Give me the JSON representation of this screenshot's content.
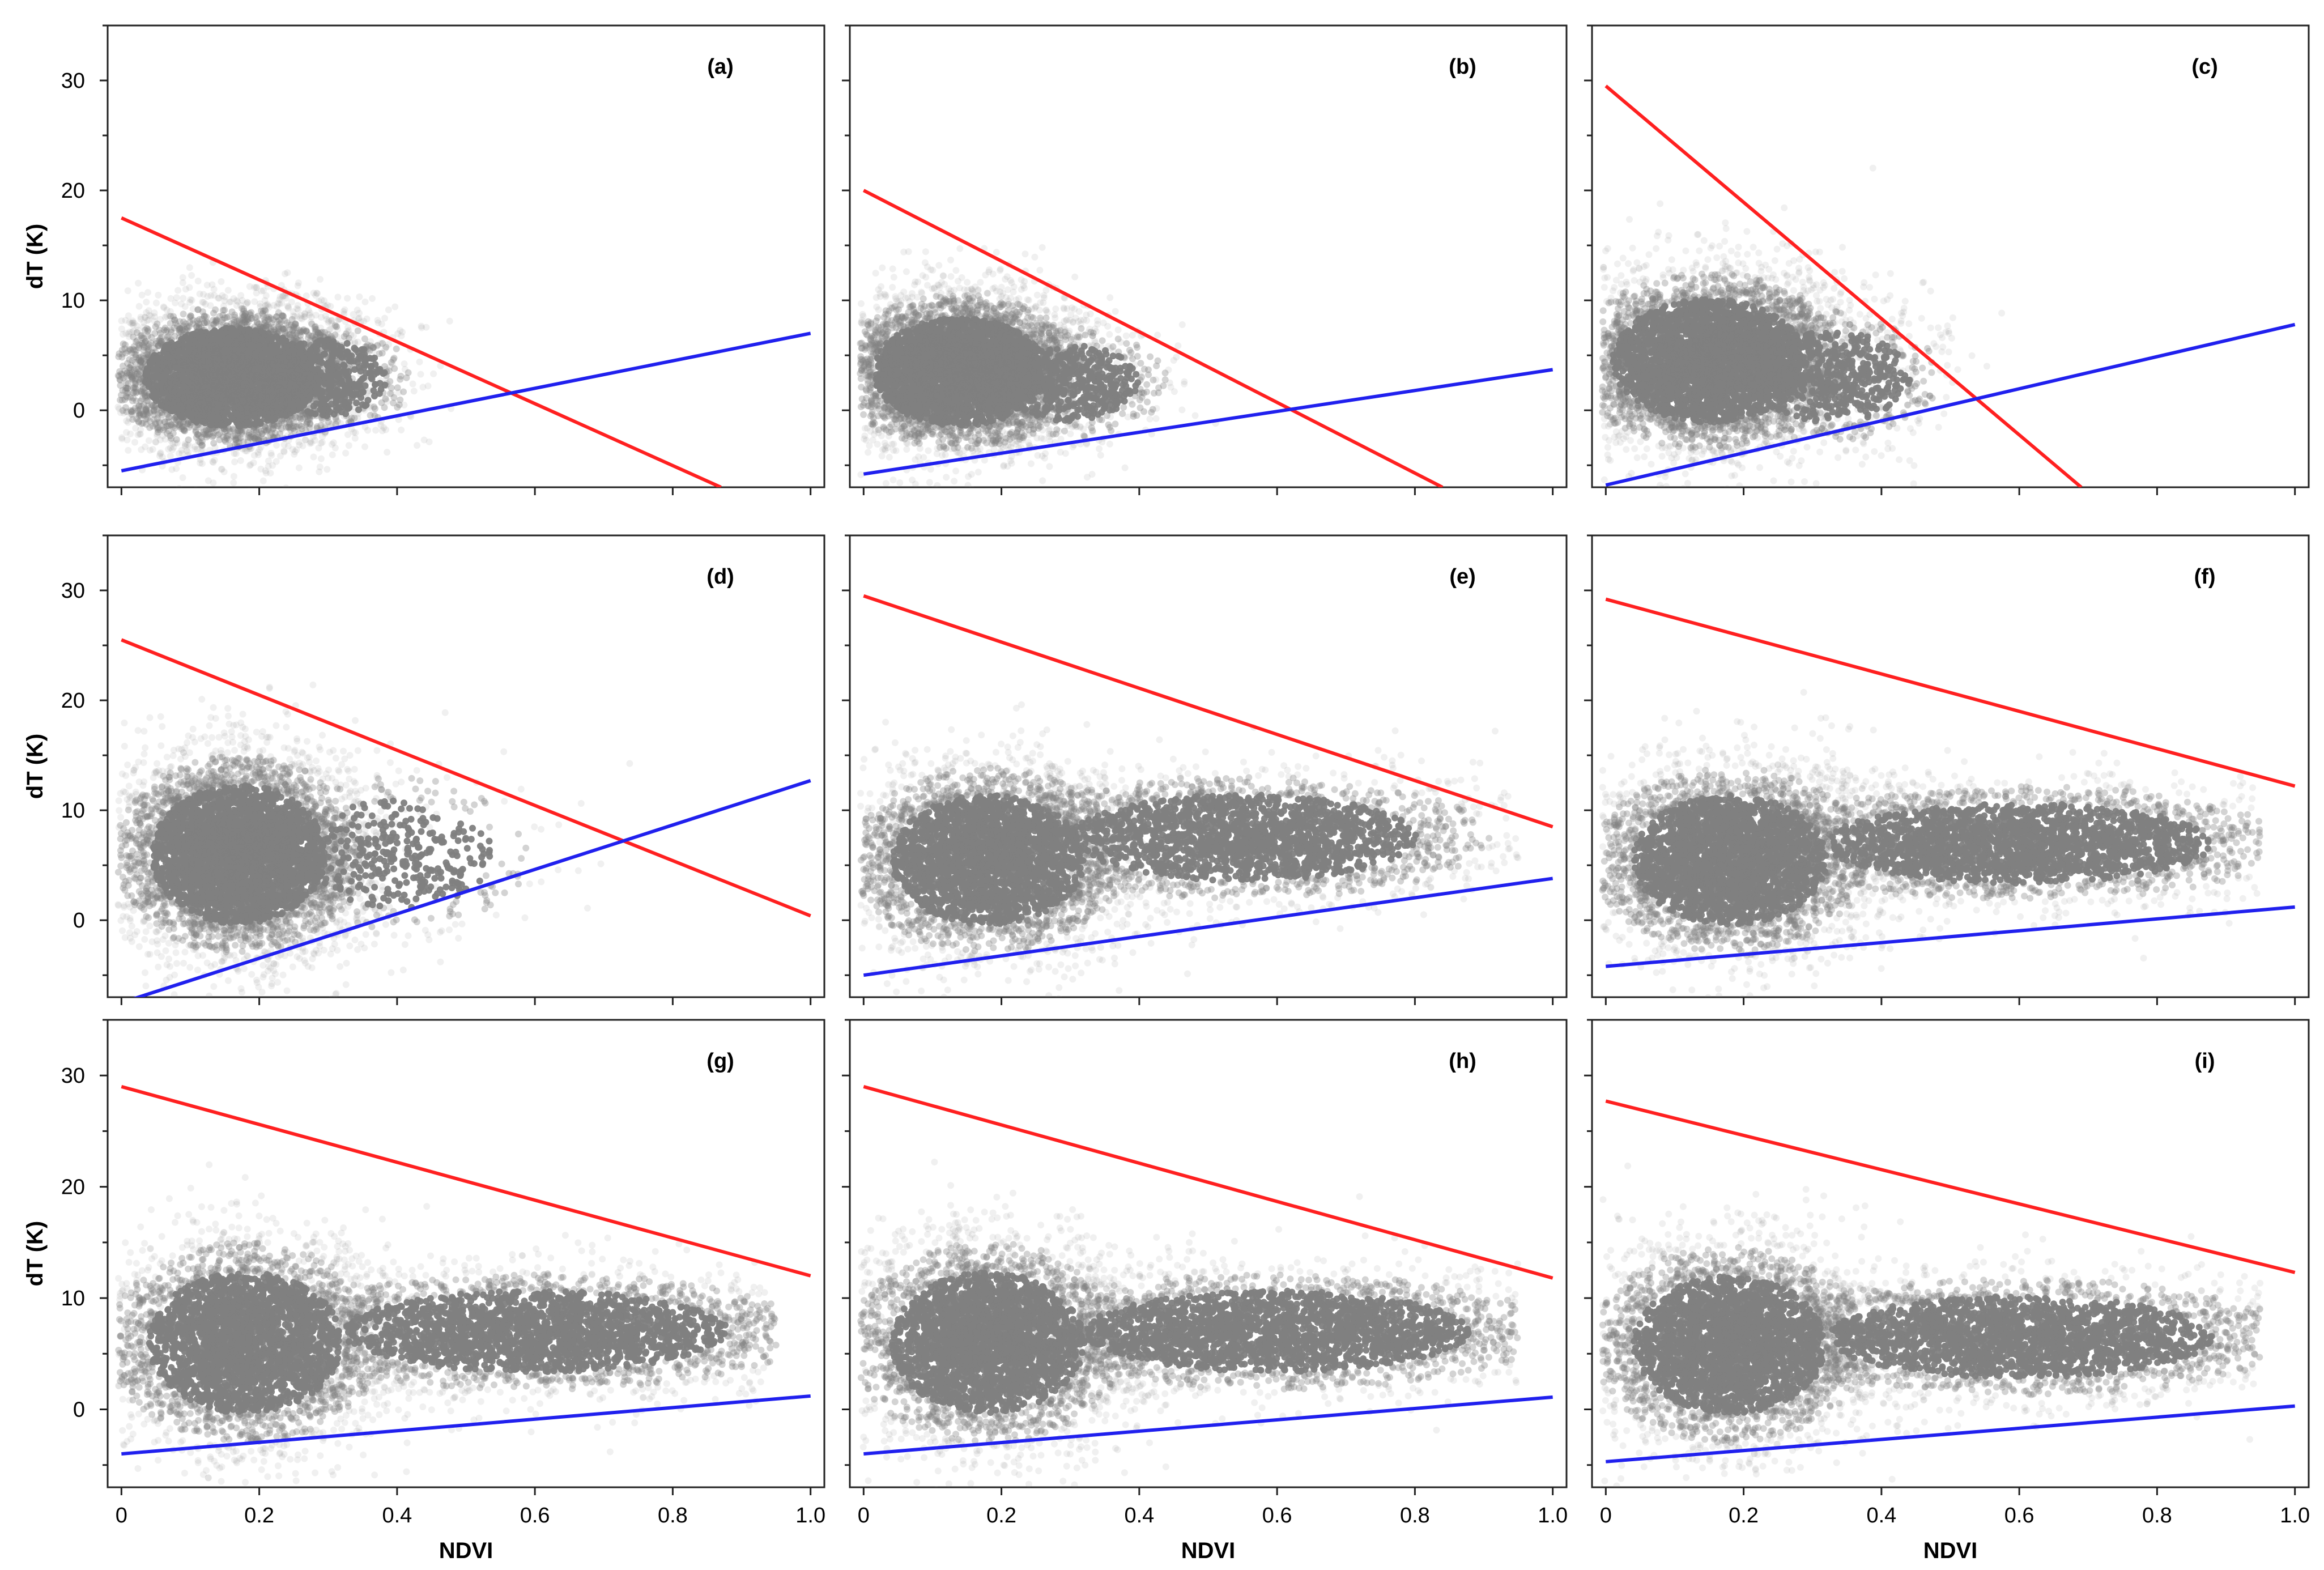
{
  "chart_data": {
    "type": "scatter",
    "layout": "3x3 grid of scatter plots",
    "xlabel": "NDVI",
    "ylabel": "dT (K)",
    "xlim": [
      -0.02,
      1.02
    ],
    "ylim": [
      -7,
      35
    ],
    "x_ticks": [
      0,
      0.2,
      0.4,
      0.6,
      0.8,
      1.0
    ],
    "x_tick_labels": [
      "0",
      "0.2",
      "0.4",
      "0.6",
      "0.8",
      "1.0"
    ],
    "y_ticks": [
      0,
      10,
      20,
      30
    ],
    "y_tick_labels": [
      "0",
      "10",
      "20",
      "30"
    ],
    "colors": {
      "scatter": "#808080",
      "dry_edge": "#ff2020",
      "wet_edge": "#2020ee"
    },
    "panels": [
      {
        "label": "(a)",
        "dry_edge": {
          "x": [
            0,
            0.87
          ],
          "y": [
            17.5,
            -7
          ]
        },
        "wet_edge": {
          "x": [
            0,
            1.0
          ],
          "y": [
            -5.5,
            7.0
          ]
        },
        "clouds": [
          {
            "cx": 0.16,
            "cy": 3.0,
            "sx": 0.09,
            "sy": 3.2,
            "n": 4500
          },
          {
            "cx": 0.3,
            "cy": 3.0,
            "sx": 0.06,
            "sy": 2.5,
            "n": 600
          }
        ]
      },
      {
        "label": "(b)",
        "dry_edge": {
          "x": [
            0,
            0.84
          ],
          "y": [
            20.0,
            -7
          ]
        },
        "wet_edge": {
          "x": [
            0,
            1.0
          ],
          "y": [
            -5.8,
            3.7
          ]
        },
        "clouds": [
          {
            "cx": 0.14,
            "cy": 3.5,
            "sx": 0.09,
            "sy": 3.5,
            "n": 4500
          },
          {
            "cx": 0.3,
            "cy": 2.5,
            "sx": 0.07,
            "sy": 2.5,
            "n": 700
          }
        ]
      },
      {
        "label": "(c)",
        "dry_edge": {
          "x": [
            0,
            0.69
          ],
          "y": [
            29.5,
            -7
          ]
        },
        "wet_edge": {
          "x": [
            0,
            1.0
          ],
          "y": [
            -6.8,
            7.8
          ]
        },
        "clouds": [
          {
            "cx": 0.15,
            "cy": 4.5,
            "sx": 0.1,
            "sy": 4.0,
            "n": 4500
          },
          {
            "cx": 0.33,
            "cy": 3.0,
            "sx": 0.08,
            "sy": 3.0,
            "n": 800
          }
        ]
      },
      {
        "label": "(d)",
        "dry_edge": {
          "x": [
            0,
            1.0
          ],
          "y": [
            25.5,
            0.4
          ]
        },
        "wet_edge": {
          "x": [
            0,
            1.0
          ],
          "y": [
            -7.5,
            12.7
          ]
        },
        "clouds": [
          {
            "cx": 0.17,
            "cy": 6.0,
            "sx": 0.09,
            "sy": 4.5,
            "n": 4500
          },
          {
            "cx": 0.4,
            "cy": 6.0,
            "sx": 0.1,
            "sy": 3.5,
            "n": 500
          }
        ]
      },
      {
        "label": "(e)",
        "dry_edge": {
          "x": [
            0,
            1.0
          ],
          "y": [
            29.5,
            8.5
          ]
        },
        "wet_edge": {
          "x": [
            0,
            1.0
          ],
          "y": [
            -5.0,
            3.8
          ]
        },
        "clouds": [
          {
            "cx": 0.18,
            "cy": 5.5,
            "sx": 0.1,
            "sy": 4.2,
            "n": 3500
          },
          {
            "cx": 0.55,
            "cy": 7.5,
            "sx": 0.18,
            "sy": 2.8,
            "n": 2500
          }
        ]
      },
      {
        "label": "(f)",
        "dry_edge": {
          "x": [
            0,
            1.0
          ],
          "y": [
            29.2,
            12.2
          ]
        },
        "wet_edge": {
          "x": [
            0,
            1.0
          ],
          "y": [
            -4.2,
            1.2
          ]
        },
        "clouds": [
          {
            "cx": 0.18,
            "cy": 5.5,
            "sx": 0.1,
            "sy": 4.2,
            "n": 3500
          },
          {
            "cx": 0.6,
            "cy": 7.0,
            "sx": 0.2,
            "sy": 2.6,
            "n": 3000
          }
        ]
      },
      {
        "label": "(g)",
        "dry_edge": {
          "x": [
            0,
            1.0
          ],
          "y": [
            29.0,
            12.0
          ]
        },
        "wet_edge": {
          "x": [
            0,
            1.0
          ],
          "y": [
            -4.0,
            1.2
          ]
        },
        "clouds": [
          {
            "cx": 0.18,
            "cy": 6.0,
            "sx": 0.1,
            "sy": 4.5,
            "n": 3500
          },
          {
            "cx": 0.6,
            "cy": 7.0,
            "sx": 0.2,
            "sy": 2.6,
            "n": 3000
          }
        ]
      },
      {
        "label": "(h)",
        "dry_edge": {
          "x": [
            0,
            1.0
          ],
          "y": [
            29.0,
            11.8
          ]
        },
        "wet_edge": {
          "x": [
            0,
            1.0
          ],
          "y": [
            -4.0,
            1.1
          ]
        },
        "clouds": [
          {
            "cx": 0.18,
            "cy": 6.0,
            "sx": 0.1,
            "sy": 4.5,
            "n": 3500
          },
          {
            "cx": 0.6,
            "cy": 7.0,
            "sx": 0.2,
            "sy": 2.6,
            "n": 3000
          }
        ]
      },
      {
        "label": "(i)",
        "dry_edge": {
          "x": [
            0,
            1.0
          ],
          "y": [
            27.7,
            12.3
          ]
        },
        "wet_edge": {
          "x": [
            0,
            1.0
          ],
          "y": [
            -4.7,
            0.3
          ]
        },
        "clouds": [
          {
            "cx": 0.18,
            "cy": 5.8,
            "sx": 0.1,
            "sy": 4.4,
            "n": 3500
          },
          {
            "cx": 0.6,
            "cy": 6.5,
            "sx": 0.2,
            "sy": 2.6,
            "n": 3000
          }
        ]
      }
    ]
  }
}
